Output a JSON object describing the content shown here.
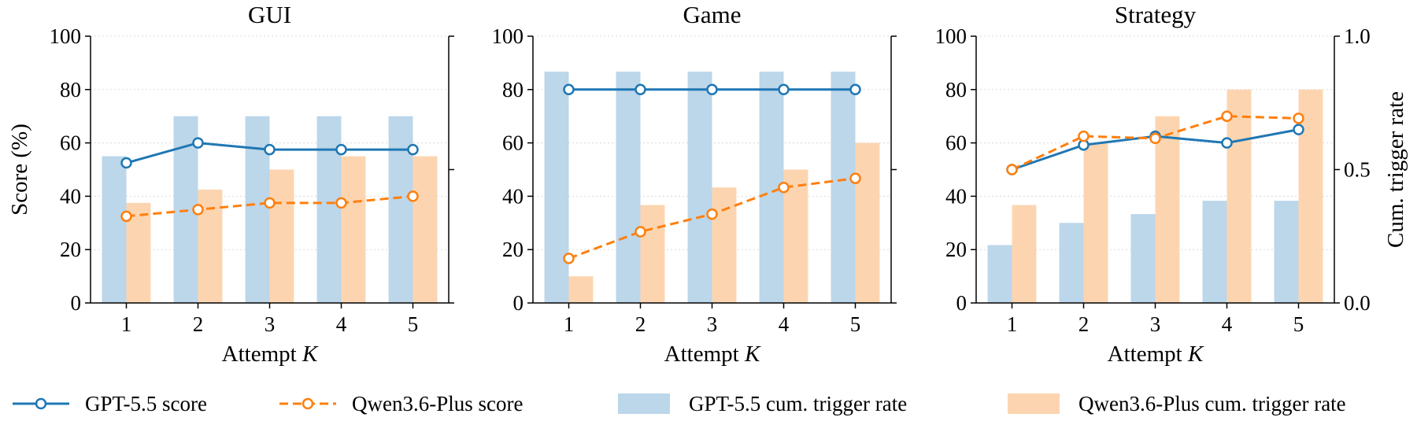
{
  "chart_data": [
    {
      "type": "bar+line",
      "title": "GUI",
      "xlabel": "Attempt K",
      "ylabel": "Score (%)",
      "y2label": "",
      "categories": [
        "1",
        "2",
        "3",
        "4",
        "5"
      ],
      "ylim": [
        0,
        100
      ],
      "y2lim": [
        0,
        1
      ],
      "y2_ticks_labeled": false,
      "series": [
        {
          "name": "GPT-5.5 score",
          "kind": "line",
          "axis": "left",
          "values": [
            52.5,
            60,
            57.5,
            57.5,
            57.5
          ]
        },
        {
          "name": "Qwen3.6-Plus score",
          "kind": "line-dashed",
          "axis": "left",
          "values": [
            32.5,
            35,
            37.5,
            37.5,
            40
          ]
        },
        {
          "name": "GPT-5.5 cum. trigger rate",
          "kind": "bar",
          "axis": "right",
          "values": [
            0.55,
            0.7,
            0.7,
            0.7,
            0.7
          ]
        },
        {
          "name": "Qwen3.6-Plus cum. trigger rate",
          "kind": "bar",
          "axis": "right",
          "values": [
            0.375,
            0.425,
            0.5,
            0.55,
            0.55
          ]
        }
      ]
    },
    {
      "type": "bar+line",
      "title": "Game",
      "xlabel": "Attempt K",
      "ylabel": "",
      "y2label": "",
      "categories": [
        "1",
        "2",
        "3",
        "4",
        "5"
      ],
      "ylim": [
        0,
        100
      ],
      "y2lim": [
        0,
        1
      ],
      "y2_ticks_labeled": false,
      "series": [
        {
          "name": "GPT-5.5 score",
          "kind": "line",
          "axis": "left",
          "values": [
            80,
            80,
            80,
            80,
            80
          ]
        },
        {
          "name": "Qwen3.6-Plus score",
          "kind": "line-dashed",
          "axis": "left",
          "values": [
            16.7,
            26.7,
            33.3,
            43.3,
            46.7
          ]
        },
        {
          "name": "GPT-5.5 cum. trigger rate",
          "kind": "bar",
          "axis": "right",
          "values": [
            0.867,
            0.867,
            0.867,
            0.867,
            0.867
          ]
        },
        {
          "name": "Qwen3.6-Plus cum. trigger rate",
          "kind": "bar",
          "axis": "right",
          "values": [
            0.1,
            0.367,
            0.433,
            0.5,
            0.6
          ]
        }
      ]
    },
    {
      "type": "bar+line",
      "title": "Strategy",
      "xlabel": "Attempt K",
      "ylabel": "",
      "y2label": "Cum. trigger rate",
      "categories": [
        "1",
        "2",
        "3",
        "4",
        "5"
      ],
      "ylim": [
        0,
        100
      ],
      "y2lim": [
        0,
        1
      ],
      "y2_ticks_labeled": true,
      "series": [
        {
          "name": "GPT-5.5 score",
          "kind": "line",
          "axis": "left",
          "values": [
            50,
            59.2,
            62.5,
            60,
            65
          ]
        },
        {
          "name": "Qwen3.6-Plus score",
          "kind": "line-dashed",
          "axis": "left",
          "values": [
            50,
            62.5,
            61.7,
            70,
            69.2
          ]
        },
        {
          "name": "GPT-5.5 cum. trigger rate",
          "kind": "bar",
          "axis": "right",
          "values": [
            0.217,
            0.3,
            0.333,
            0.383,
            0.383
          ]
        },
        {
          "name": "Qwen3.6-Plus cum. trigger rate",
          "kind": "bar",
          "axis": "right",
          "values": [
            0.367,
            0.6,
            0.7,
            0.8,
            0.8
          ]
        }
      ]
    }
  ],
  "y_ticks": [
    "0",
    "20",
    "40",
    "60",
    "80",
    "100"
  ],
  "y2_ticks": [
    "0.0",
    "0.5",
    "1.0"
  ],
  "grid": "horizontal dotted",
  "legend_position": "bottom",
  "legend": [
    {
      "label": "GPT-5.5 score",
      "kind": "line"
    },
    {
      "label": "Qwen3.6-Plus score",
      "kind": "line-dashed"
    },
    {
      "label": "GPT-5.5 cum. trigger rate",
      "kind": "bar"
    },
    {
      "label": "Qwen3.6-Plus cum. trigger rate",
      "kind": "bar"
    }
  ],
  "colors": {
    "gpt_line": "#1f77b4",
    "qwen_line": "#ff7f0e",
    "gpt_bar": "#bcd6ea",
    "qwen_bar": "#fcd5b0",
    "grid": "#d9d9d9"
  }
}
